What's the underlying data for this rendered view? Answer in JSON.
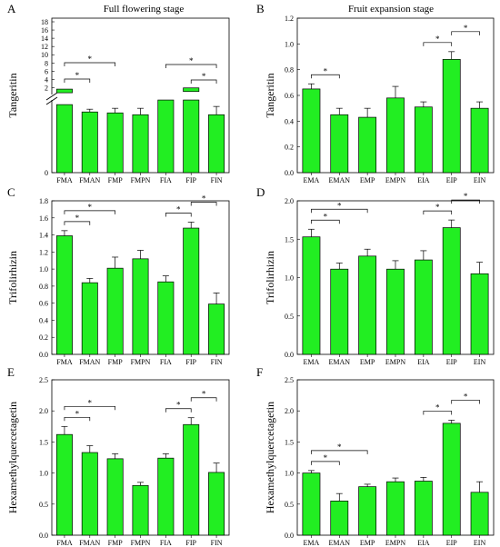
{
  "colors": {
    "bar": "#22ee22",
    "stroke": "#000000",
    "background": "#ffffff"
  },
  "chart_data": [
    {
      "panel": "A",
      "type": "bar",
      "title": "Full flowering stage",
      "ylabel": "Tangeritin",
      "categories": [
        "FMA",
        "FMAN",
        "FMP",
        "FMPN",
        "FIA",
        "FIP",
        "FIN"
      ],
      "broken_axis": true,
      "ylim": [
        0,
        18
      ],
      "upper_ticks": [
        "2",
        "4",
        "6",
        "8",
        "10",
        "12",
        "14",
        "16",
        "18"
      ],
      "values": [
        0.74,
        0.66,
        0.65,
        0.63,
        0.79,
        0.79,
        0.63
      ],
      "errors": [
        0.0,
        0.03,
        0.05,
        0.07,
        0.0,
        0.0,
        0.09
      ],
      "insets": [
        {
          "category": "FMA",
          "value": 1.2
        },
        {
          "category": "FIP",
          "value": 1.5
        }
      ],
      "brackets": [
        {
          "from": "FMA",
          "to": "FMAN",
          "label": "*"
        },
        {
          "from": "FMA",
          "to": "FMP",
          "label": "*"
        },
        {
          "from": "FIA",
          "to": "FIN",
          "label": "*"
        },
        {
          "from": "FIP",
          "to": "FIN",
          "label": "*"
        }
      ]
    },
    {
      "panel": "B",
      "type": "bar",
      "title": "Fruit expansion stage",
      "ylabel": "Tangeritin",
      "categories": [
        "EMA",
        "EMAN",
        "EMP",
        "EMPN",
        "EIA",
        "EIP",
        "EIN"
      ],
      "ylim": [
        0,
        1.2
      ],
      "yticks": [
        "0.0",
        "0.2",
        "0.4",
        "0.6",
        "0.8",
        "1.0",
        "1.2"
      ],
      "values": [
        0.65,
        0.45,
        0.43,
        0.58,
        0.51,
        0.88,
        0.5
      ],
      "errors": [
        0.04,
        0.05,
        0.07,
        0.09,
        0.04,
        0.06,
        0.05
      ],
      "brackets": [
        {
          "from": "EMA",
          "to": "EMAN",
          "label": "*"
        },
        {
          "from": "EIA",
          "to": "EIP",
          "label": "*"
        },
        {
          "from": "EIP",
          "to": "EIN",
          "label": "*"
        }
      ]
    },
    {
      "panel": "C",
      "type": "bar",
      "ylabel": "Trifolirhizin",
      "categories": [
        "FMA",
        "FMAN",
        "FMP",
        "FMPN",
        "FIA",
        "FIP",
        "FIN"
      ],
      "ylim": [
        0,
        1.8
      ],
      "yticks": [
        "0.0",
        "0.2",
        "0.4",
        "0.6",
        "0.8",
        "1.0",
        "1.2",
        "1.4",
        "1.6",
        "1.8"
      ],
      "values": [
        1.39,
        0.84,
        1.01,
        1.12,
        0.85,
        1.48,
        0.59
      ],
      "errors": [
        0.06,
        0.05,
        0.13,
        0.1,
        0.07,
        0.07,
        0.13
      ],
      "brackets": [
        {
          "from": "FMA",
          "to": "FMAN",
          "label": "*"
        },
        {
          "from": "FMA",
          "to": "FMP",
          "label": "*"
        },
        {
          "from": "FIA",
          "to": "FIP",
          "label": "*"
        },
        {
          "from": "FIP",
          "to": "FIN",
          "label": "*"
        }
      ]
    },
    {
      "panel": "D",
      "type": "bar",
      "ylabel": "Trifolirhizin",
      "categories": [
        "EMA",
        "EMAN",
        "EMP",
        "EMPN",
        "EIA",
        "EIP",
        "EIN"
      ],
      "ylim": [
        0,
        2.0
      ],
      "yticks": [
        "0.0",
        "0.5",
        "1.0",
        "1.5",
        "2.0"
      ],
      "values": [
        1.53,
        1.11,
        1.28,
        1.11,
        1.23,
        1.65,
        1.05
      ],
      "errors": [
        0.1,
        0.08,
        0.09,
        0.11,
        0.12,
        0.1,
        0.15
      ],
      "brackets": [
        {
          "from": "EMA",
          "to": "EMAN",
          "label": "*"
        },
        {
          "from": "EMA",
          "to": "EMP",
          "label": "*"
        },
        {
          "from": "EIA",
          "to": "EIP",
          "label": "*"
        },
        {
          "from": "EIP",
          "to": "EIN",
          "label": "*"
        }
      ]
    },
    {
      "panel": "E",
      "type": "bar",
      "ylabel": "Hexamethylquercetagetin",
      "categories": [
        "FMA",
        "FMAN",
        "FMP",
        "FMPN",
        "FIA",
        "FIP",
        "FIN"
      ],
      "ylim": [
        0,
        2.5
      ],
      "yticks": [
        "0.0",
        "0.5",
        "1.0",
        "1.5",
        "2.0",
        "2.5"
      ],
      "values": [
        1.62,
        1.33,
        1.23,
        0.8,
        1.24,
        1.78,
        1.01
      ],
      "errors": [
        0.13,
        0.11,
        0.08,
        0.05,
        0.07,
        0.11,
        0.15
      ],
      "brackets": [
        {
          "from": "FMA",
          "to": "FMAN",
          "label": "*"
        },
        {
          "from": "FMA",
          "to": "FMP",
          "label": "*"
        },
        {
          "from": "FIA",
          "to": "FIP",
          "label": "*"
        },
        {
          "from": "FIP",
          "to": "FIN",
          "label": "*"
        }
      ]
    },
    {
      "panel": "F",
      "type": "bar",
      "ylabel": "Hexamethylquercetagetin",
      "categories": [
        "EMA",
        "EMAN",
        "EMP",
        "EMPN",
        "EIA",
        "EIP",
        "EIN"
      ],
      "ylim": [
        0,
        2.5
      ],
      "yticks": [
        "0.0",
        "0.5",
        "1.0",
        "1.5",
        "2.0",
        "2.5"
      ],
      "values": [
        1.0,
        0.55,
        0.78,
        0.86,
        0.87,
        1.8,
        0.69
      ],
      "errors": [
        0.04,
        0.12,
        0.04,
        0.06,
        0.06,
        0.05,
        0.17
      ],
      "brackets": [
        {
          "from": "EMA",
          "to": "EMAN",
          "label": "*"
        },
        {
          "from": "EMA",
          "to": "EMP",
          "label": "*"
        },
        {
          "from": "EIA",
          "to": "EIP",
          "label": "*"
        },
        {
          "from": "EIP",
          "to": "EIN",
          "label": "*"
        }
      ]
    }
  ]
}
